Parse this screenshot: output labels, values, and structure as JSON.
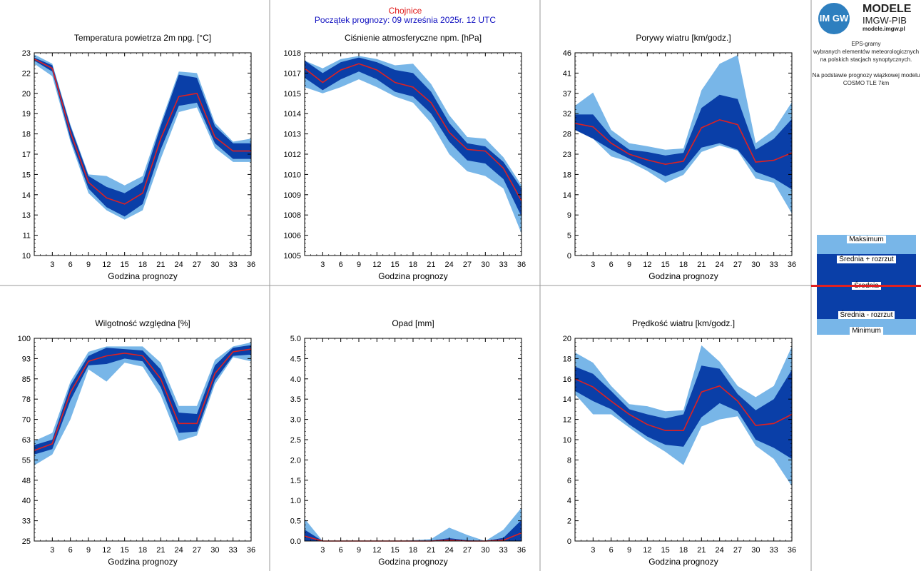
{
  "header": {
    "station": "Chojnice",
    "forecast_start": "Początek prognozy: 09 września 2025r. 12 UTC"
  },
  "logo": {
    "mark": "IM GW",
    "title": "MODELE",
    "org": "IMGW-PIB",
    "site": "modele.imgw.pl"
  },
  "info": {
    "line1": "EPS-gramy",
    "line2": "wybranych elementów meteorologicznych",
    "line3": "na polskich stacjach  synoptycznych.",
    "line4": "Na podstawie prognozy wiązkowej modelu",
    "line5": "COSMO TLE 7km"
  },
  "legend": {
    "max": "Maksimum",
    "mean_plus": "Średnia + rozrzut",
    "mean": "Średnia",
    "mean_minus": "Średnia - rozrzut",
    "min": "Minimum"
  },
  "colors": {
    "envelope": "#78b6e8",
    "spread": "#0a3fa8",
    "mean": "#e02020",
    "header_station": "#e01818",
    "header_start": "#1010c0"
  },
  "chart_data": [
    {
      "type": "area",
      "title": "Temperatura powietrza 2m npg. [°C]",
      "xlabel": "Godzina prognozy",
      "ylabel": "",
      "x": [
        0,
        3,
        6,
        9,
        12,
        15,
        18,
        21,
        24,
        27,
        30,
        33,
        36
      ],
      "xticks": [
        "3",
        "6",
        "9",
        "12",
        "15",
        "18",
        "21",
        "24",
        "27",
        "30",
        "33",
        "36"
      ],
      "yticks": [
        "10",
        "11",
        "13",
        "14",
        "15",
        "17",
        "18",
        "19",
        "20",
        "22",
        "23"
      ],
      "ylim": [
        10,
        23
      ],
      "max": [
        22.9,
        22.3,
        18.4,
        15.2,
        15.1,
        14.5,
        15.1,
        18.5,
        21.8,
        21.7,
        18.5,
        17.3,
        17.5
      ],
      "mean_plus": [
        22.7,
        22.2,
        18.3,
        15.1,
        14.4,
        14.0,
        14.7,
        18.3,
        21.6,
        21.4,
        18.3,
        17.2,
        17.2
      ],
      "mean": [
        22.6,
        22.0,
        17.9,
        14.7,
        13.7,
        13.3,
        14.0,
        17.5,
        20.2,
        20.4,
        17.6,
        16.7,
        16.7
      ],
      "mean_minus": [
        22.5,
        21.8,
        17.5,
        14.3,
        13.1,
        12.5,
        13.3,
        16.8,
        19.6,
        19.8,
        17.2,
        16.2,
        16.2
      ],
      "min": [
        22.3,
        21.5,
        17.3,
        14.0,
        12.9,
        12.3,
        12.9,
        16.2,
        19.2,
        19.5,
        16.9,
        16.0,
        16.0
      ]
    },
    {
      "type": "area",
      "title": "Ciśnienie atmosferyczne npm. [hPa]",
      "xlabel": "Godzina prognozy",
      "ylabel": "",
      "x": [
        0,
        3,
        6,
        9,
        12,
        15,
        18,
        21,
        24,
        27,
        30,
        33,
        36
      ],
      "xticks": [
        "3",
        "6",
        "9",
        "12",
        "15",
        "18",
        "21",
        "24",
        "27",
        "30",
        "33",
        "36"
      ],
      "yticks": [
        "1005",
        "1006",
        "1008",
        "1009",
        "1010",
        "1012",
        "1013",
        "1014",
        "1015",
        "1017",
        "1018"
      ],
      "ylim": [
        1005,
        1018
      ],
      "max": [
        1017.5,
        1017.0,
        1017.6,
        1017.8,
        1017.6,
        1017.2,
        1017.3,
        1016.0,
        1014.0,
        1012.6,
        1012.5,
        1011.3,
        1009.5
      ],
      "mean_plus": [
        1017.5,
        1016.7,
        1017.4,
        1017.7,
        1017.4,
        1016.9,
        1016.7,
        1015.5,
        1013.5,
        1012.2,
        1012.0,
        1011.0,
        1009.3
      ],
      "mean": [
        1017.0,
        1016.1,
        1016.9,
        1017.3,
        1016.9,
        1016.1,
        1015.8,
        1014.8,
        1012.9,
        1011.8,
        1011.7,
        1010.6,
        1008.5
      ],
      "mean_minus": [
        1016.4,
        1015.6,
        1016.3,
        1016.8,
        1016.3,
        1015.5,
        1015.2,
        1014.1,
        1012.3,
        1011.1,
        1010.9,
        1009.9,
        1007.5
      ],
      "min": [
        1015.8,
        1015.4,
        1015.8,
        1016.3,
        1015.8,
        1015.2,
        1014.8,
        1013.5,
        1011.5,
        1010.4,
        1010.1,
        1009.3,
        1006.4
      ]
    },
    {
      "type": "area",
      "title": "Porywy wiatru [km/godz.]",
      "xlabel": "Godzina prognozy",
      "ylabel": "",
      "x": [
        0,
        3,
        6,
        9,
        12,
        15,
        18,
        21,
        24,
        27,
        30,
        33,
        36
      ],
      "xticks": [
        "3",
        "6",
        "9",
        "12",
        "15",
        "18",
        "21",
        "24",
        "27",
        "30",
        "33",
        "36"
      ],
      "yticks": [
        "0",
        "5",
        "9",
        "14",
        "18",
        "23",
        "28",
        "32",
        "37",
        "41",
        "46"
      ],
      "ylim": [
        0,
        46
      ],
      "max": [
        34.0,
        37.0,
        28.5,
        25.5,
        24.8,
        24.0,
        24.3,
        37.5,
        43.5,
        45.5,
        25.5,
        28.5,
        34.8
      ],
      "mean_plus": [
        32.0,
        32.0,
        27.0,
        24.0,
        23.5,
        22.7,
        23.3,
        33.5,
        36.5,
        35.5,
        24.0,
        26.5,
        31.0
      ],
      "mean": [
        30.0,
        29.2,
        25.5,
        23.0,
        21.7,
        20.7,
        21.4,
        29.0,
        30.8,
        29.7,
        21.2,
        21.6,
        23.3
      ],
      "mean_minus": [
        28.5,
        26.5,
        24.0,
        22.0,
        20.0,
        18.0,
        19.5,
        24.5,
        25.5,
        24.0,
        19.0,
        17.5,
        15.0
      ],
      "min": [
        28.5,
        26.5,
        22.5,
        21.3,
        19.2,
        16.5,
        18.3,
        23.5,
        25.0,
        23.8,
        17.5,
        16.5,
        9.5
      ]
    },
    {
      "type": "area",
      "title": "Wilgotność względna [%]",
      "xlabel": "Godzina prognozy",
      "ylabel": "",
      "x": [
        0,
        3,
        6,
        9,
        12,
        15,
        18,
        21,
        24,
        27,
        30,
        33,
        36
      ],
      "xticks": [
        "3",
        "6",
        "9",
        "12",
        "15",
        "18",
        "21",
        "24",
        "27",
        "30",
        "33",
        "36"
      ],
      "yticks": [
        "25",
        "33",
        "40",
        "48",
        "55",
        "63",
        "70",
        "78",
        "85",
        "93",
        "100"
      ],
      "ylim": [
        25,
        100
      ],
      "max": [
        62.0,
        65.0,
        84.0,
        95.0,
        97.0,
        97.0,
        97.0,
        91.0,
        75.0,
        75.0,
        92.0,
        97.0,
        98.5
      ],
      "mean_plus": [
        60.5,
        62.5,
        82.5,
        93.5,
        96.5,
        96.0,
        95.5,
        88.5,
        72.5,
        72.0,
        90.0,
        96.5,
        97.5
      ],
      "mean": [
        58.5,
        61.0,
        80.0,
        91.5,
        93.5,
        94.5,
        93.5,
        85.0,
        68.5,
        68.5,
        87.0,
        95.0,
        96.0
      ],
      "mean_minus": [
        57.0,
        59.0,
        77.0,
        90.0,
        90.5,
        92.5,
        91.5,
        82.0,
        65.0,
        65.5,
        84.5,
        93.5,
        94.0
      ],
      "min": [
        53.0,
        57.0,
        70.0,
        88.5,
        84.0,
        91.0,
        89.5,
        79.0,
        62.0,
        64.0,
        83.0,
        93.0,
        91.5
      ]
    },
    {
      "type": "area",
      "title": "Opad [mm]",
      "xlabel": "Godzina prognozy",
      "ylabel": "",
      "x": [
        0,
        3,
        6,
        9,
        12,
        15,
        18,
        21,
        24,
        27,
        30,
        33,
        36
      ],
      "xticks": [
        "3",
        "6",
        "9",
        "12",
        "15",
        "18",
        "21",
        "24",
        "27",
        "30",
        "33",
        "36"
      ],
      "yticks": [
        "0.0",
        "0.5",
        "1.0",
        "1.5",
        "2.0",
        "2.5",
        "3.0",
        "3.5",
        "4.0",
        "4.5",
        "5.0"
      ],
      "ylim": [
        0,
        5
      ],
      "max": [
        0.55,
        0.0,
        0.0,
        0.0,
        0.0,
        0.0,
        0.02,
        0.05,
        0.33,
        0.15,
        0.0,
        0.28,
        0.82
      ],
      "mean_plus": [
        0.28,
        0.0,
        0.0,
        0.0,
        0.0,
        0.0,
        0.0,
        0.01,
        0.07,
        0.02,
        0.0,
        0.08,
        0.52
      ],
      "mean": [
        0.12,
        0.0,
        0.0,
        0.0,
        0.0,
        0.0,
        0.0,
        0.0,
        0.02,
        0.0,
        0.0,
        0.02,
        0.2
      ],
      "mean_minus": [
        0.0,
        0.0,
        0.0,
        0.0,
        0.0,
        0.0,
        0.0,
        0.0,
        0.0,
        0.0,
        0.0,
        0.0,
        0.0
      ],
      "min": [
        0.0,
        0.0,
        0.0,
        0.0,
        0.0,
        0.0,
        0.0,
        0.0,
        0.0,
        0.0,
        0.0,
        0.0,
        0.0
      ]
    },
    {
      "type": "area",
      "title": "Prędkość wiatru [km/godz.]",
      "xlabel": "Godzina prognozy",
      "ylabel": "",
      "x": [
        0,
        3,
        6,
        9,
        12,
        15,
        18,
        21,
        24,
        27,
        30,
        33,
        36
      ],
      "xticks": [
        "3",
        "6",
        "9",
        "12",
        "15",
        "18",
        "21",
        "24",
        "27",
        "30",
        "33",
        "36"
      ],
      "yticks": [
        "0",
        "2",
        "4",
        "6",
        "8",
        "10",
        "12",
        "14",
        "16",
        "18",
        "20"
      ],
      "ylim": [
        0,
        20
      ],
      "max": [
        18.6,
        17.6,
        15.3,
        13.5,
        13.3,
        12.8,
        12.9,
        19.3,
        17.7,
        15.3,
        14.2,
        15.3,
        19.2
      ],
      "mean_plus": [
        17.2,
        16.5,
        14.8,
        13.0,
        12.5,
        12.1,
        12.5,
        17.3,
        17.0,
        14.5,
        12.9,
        14.0,
        16.9
      ],
      "mean": [
        16.0,
        15.2,
        13.8,
        12.5,
        11.5,
        10.9,
        10.9,
        14.7,
        15.3,
        13.8,
        11.4,
        11.6,
        12.5
      ],
      "mean_minus": [
        14.8,
        13.8,
        13.0,
        11.5,
        10.3,
        9.5,
        9.3,
        12.2,
        13.6,
        12.8,
        10.0,
        9.2,
        8.1
      ],
      "min": [
        14.5,
        12.5,
        12.5,
        11.2,
        9.9,
        8.8,
        7.5,
        11.3,
        12.0,
        12.3,
        9.4,
        8.1,
        5.4
      ]
    }
  ]
}
